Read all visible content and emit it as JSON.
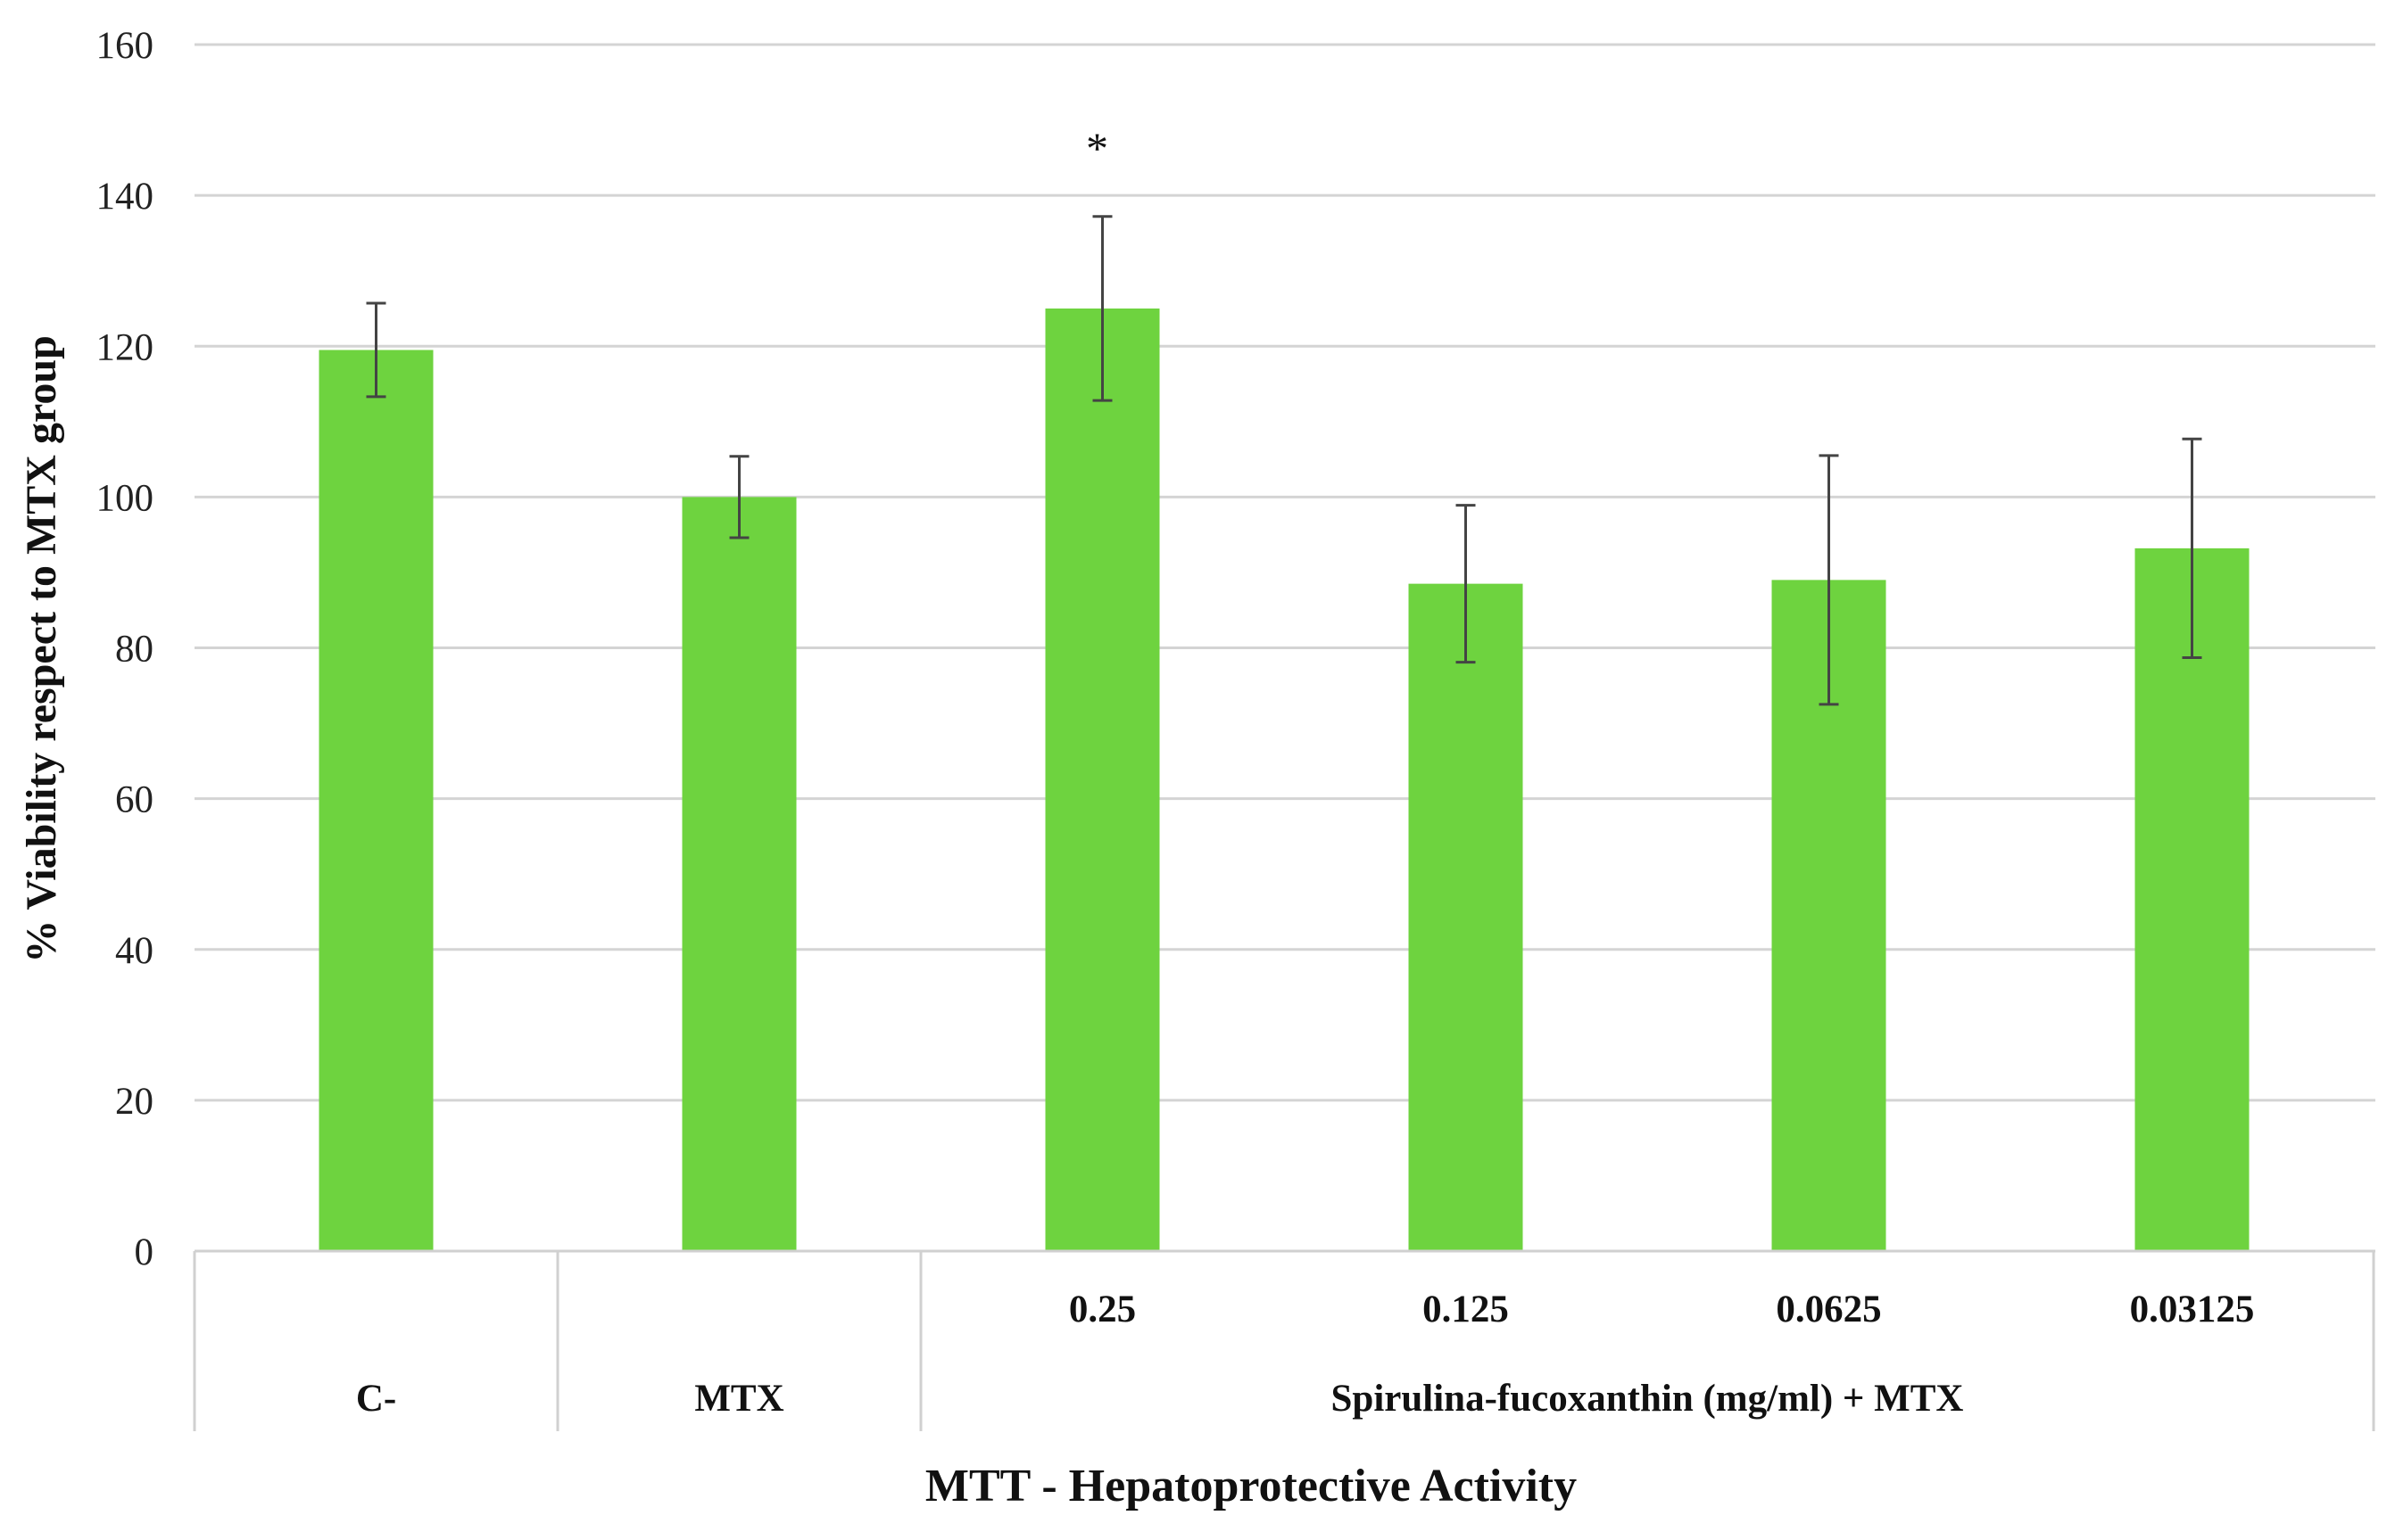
{
  "chart_data": {
    "type": "bar",
    "xlabel": "MTT - Hepatoprotective Activity",
    "ylabel": "% Viability respect to MTX group",
    "ylim": [
      0,
      160
    ],
    "yticks": [
      "0",
      "20",
      "40",
      "60",
      "80",
      "100",
      "120",
      "140",
      "160"
    ],
    "grid": true,
    "bar_color": "#6ED33F",
    "categories": [
      "C-",
      "MTX",
      "0.25",
      "0.125",
      "0.0625",
      "0.03125"
    ],
    "values": [
      119.5,
      100,
      125,
      88.5,
      89,
      93.2
    ],
    "errors": [
      6.2,
      5.4,
      12.2,
      10.4,
      16.5,
      14.5
    ],
    "group_labels": [
      {
        "label": "C-"
      },
      {
        "label": "MTX"
      },
      {
        "label": "Spirulina-fucoxanthin (mg/ml) + MTX"
      }
    ],
    "annotations": [
      {
        "category": "0.25",
        "text": "*"
      }
    ]
  }
}
